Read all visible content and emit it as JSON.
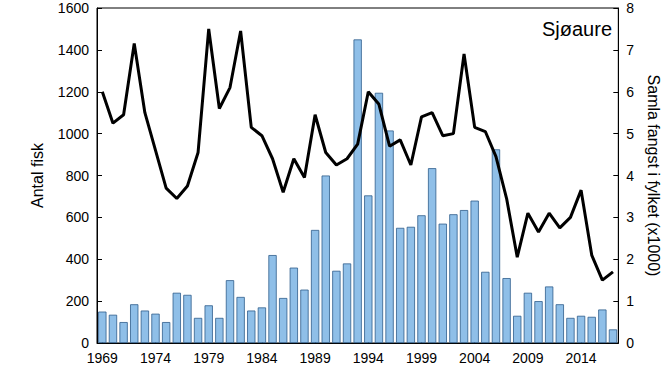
{
  "chart_data": {
    "type": "bar",
    "title": "Sjøaure",
    "y_label": "Antal fisk",
    "y2_label": "Samla fangst i fylket (x1000)",
    "categories": [
      "1969",
      null,
      null,
      null,
      null,
      "1974",
      null,
      null,
      null,
      null,
      "1979",
      null,
      null,
      null,
      null,
      "1984",
      null,
      null,
      null,
      null,
      "1989",
      null,
      null,
      null,
      null,
      "1994",
      null,
      null,
      null,
      null,
      "1999",
      null,
      null,
      null,
      null,
      "2004",
      null,
      null,
      null,
      null,
      "2009",
      null,
      null,
      null,
      null,
      "2014",
      null,
      null,
      null
    ],
    "series": [
      {
        "type": "bar",
        "color": "#8fbfe8",
        "values": [
          150,
          135,
          100,
          185,
          155,
          140,
          100,
          240,
          230,
          120,
          180,
          120,
          300,
          220,
          155,
          170,
          420,
          215,
          360,
          255,
          540,
          800,
          345,
          380,
          1450,
          705,
          1195,
          1015,
          550,
          555,
          610,
          835,
          570,
          615,
          635,
          680,
          340,
          925,
          310,
          130,
          240,
          200,
          270,
          185,
          120,
          130,
          125,
          160,
          65
        ]
      },
      {
        "type": "line",
        "axis": "y2",
        "color": "#000000",
        "values": [
          6.0,
          5.25,
          5.45,
          7.15,
          5.5,
          4.6,
          3.7,
          3.45,
          3.75,
          4.55,
          7.5,
          5.6,
          6.1,
          7.45,
          5.15,
          4.95,
          4.4,
          3.6,
          4.4,
          3.95,
          5.45,
          4.55,
          4.25,
          4.4,
          4.75,
          6.0,
          5.7,
          4.7,
          4.85,
          4.25,
          5.4,
          5.5,
          4.95,
          5.0,
          6.9,
          5.15,
          5.05,
          4.45,
          3.45,
          2.05,
          3.1,
          2.65,
          3.1,
          2.75,
          3.0,
          3.65,
          2.1,
          1.5,
          1.7
        ]
      }
    ],
    "ylim": [
      0,
      1600
    ],
    "yticks": [
      0,
      200,
      400,
      600,
      800,
      1000,
      1200,
      1400,
      1600
    ],
    "y2lim": [
      0,
      8
    ],
    "y2ticks": [
      0,
      1,
      2,
      3,
      4,
      5,
      6,
      7,
      8
    ],
    "grid": false
  }
}
